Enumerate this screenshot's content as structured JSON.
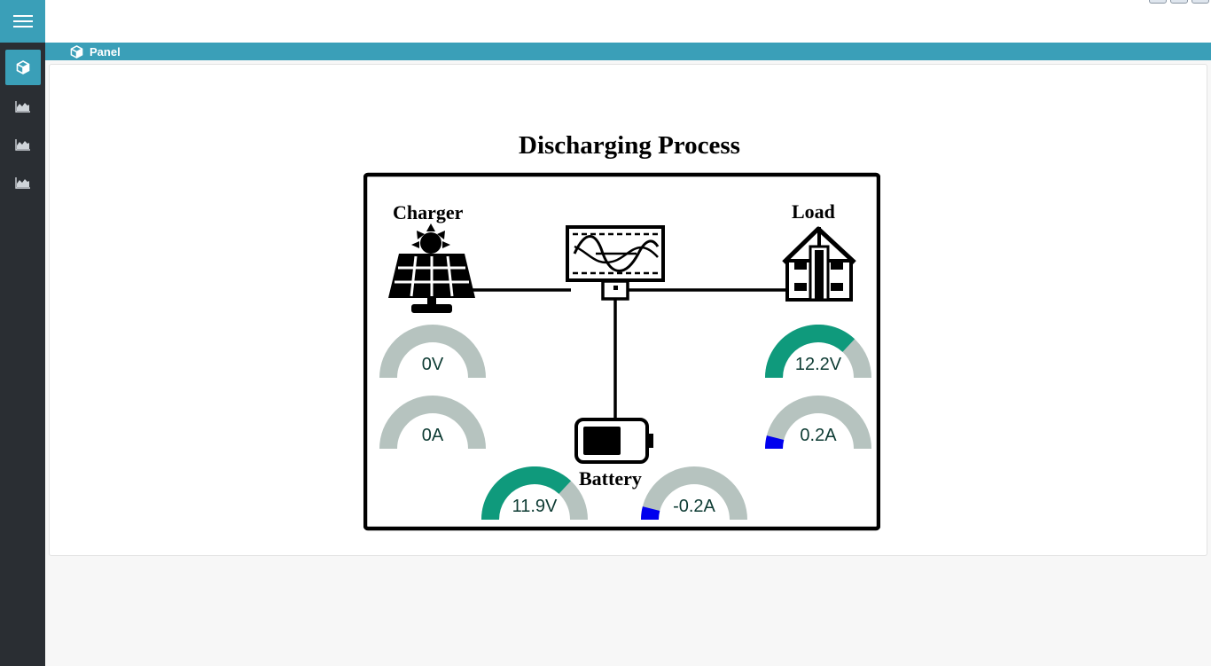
{
  "colors": {
    "accent": "#3a9fb8",
    "sidebar": "#2a2e33",
    "gauge_track": "#b6c3bf",
    "gauge_positive": "#0f9a7c",
    "gauge_negative": "#0000ee"
  },
  "sidebar": {
    "menu_icon": "hamburger-icon",
    "items": [
      {
        "icon": "cube-icon",
        "active": true
      },
      {
        "icon": "area-chart-icon",
        "active": false
      },
      {
        "icon": "area-chart-icon",
        "active": false
      },
      {
        "icon": "area-chart-icon",
        "active": false
      }
    ]
  },
  "breadcrumb": {
    "icon": "cube-icon",
    "label": "Panel"
  },
  "diagram": {
    "title": "Discharging Process",
    "charger_label": "Charger",
    "load_label": "Load",
    "battery_label": "Battery"
  },
  "gauges": [
    {
      "id": "charger-voltage",
      "text": "0V",
      "fraction": 0.0,
      "color": "positive"
    },
    {
      "id": "charger-current",
      "text": "0A",
      "fraction": 0.0,
      "color": "positive"
    },
    {
      "id": "load-voltage",
      "text": "12.2V",
      "fraction": 0.74,
      "color": "positive"
    },
    {
      "id": "load-current",
      "text": "0.2A",
      "fraction": 0.08,
      "color": "negative"
    },
    {
      "id": "battery-voltage",
      "text": "11.9V",
      "fraction": 0.74,
      "color": "positive"
    },
    {
      "id": "battery-current",
      "text": "-0.2A",
      "fraction": 0.08,
      "color": "negative"
    }
  ]
}
